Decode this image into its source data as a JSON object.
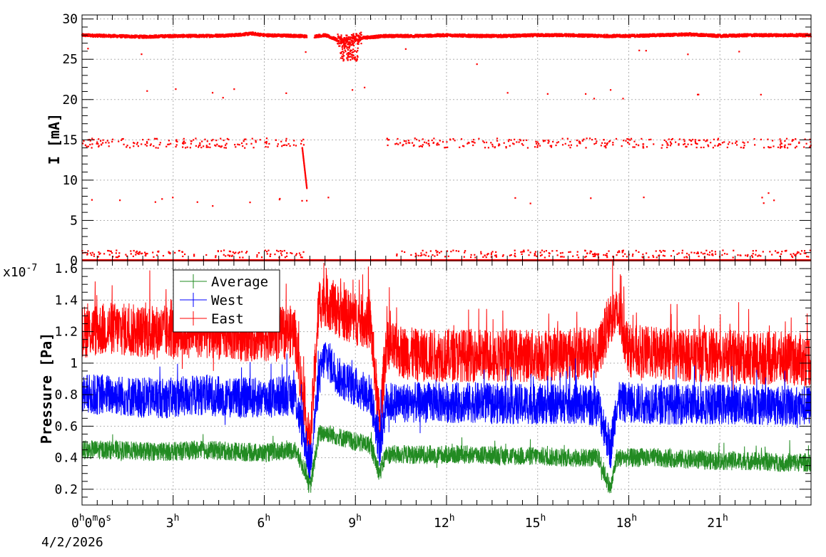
{
  "chart_data": [
    {
      "type": "scatter",
      "ylabel": "I [mA]",
      "ylim": [
        0,
        30.5
      ],
      "yticks": [
        "0",
        "5",
        "10",
        "15",
        "20",
        "25",
        "30"
      ],
      "xlim_hours": [
        0,
        24
      ],
      "grid": true,
      "color": "#ff0000",
      "series": [
        {
          "values_hours_mA": [
            [
              0.0,
              28.0
            ],
            [
              1.0,
              27.9
            ],
            [
              2.0,
              27.8
            ],
            [
              3.0,
              27.9
            ],
            [
              4.0,
              27.9
            ],
            [
              5.0,
              28.0
            ],
            [
              5.6,
              28.2
            ],
            [
              6.0,
              28.0
            ],
            [
              7.2,
              27.9
            ],
            [
              7.5,
              27.8
            ],
            [
              8.0,
              28.0
            ],
            [
              8.7,
              27.0
            ],
            [
              9.0,
              27.6
            ],
            [
              10.0,
              27.9
            ],
            [
              11.0,
              27.9
            ],
            [
              12.0,
              28.0
            ],
            [
              13.0,
              27.9
            ],
            [
              14.0,
              27.9
            ],
            [
              15.0,
              28.0
            ],
            [
              16.0,
              28.0
            ],
            [
              17.0,
              27.9
            ],
            [
              18.0,
              27.9
            ],
            [
              19.0,
              28.0
            ],
            [
              20.0,
              28.1
            ],
            [
              21.0,
              27.9
            ],
            [
              22.0,
              28.0
            ],
            [
              23.0,
              28.0
            ],
            [
              24.0,
              28.0
            ],
            [
              7.25,
              14.0
            ],
            [
              7.4,
              9.0
            ],
            [
              0.2,
              15.0
            ],
            [
              6.8,
              14.5
            ],
            [
              8.9,
              21.2
            ],
            [
              9.3,
              21.5
            ],
            [
              17.4,
              21.2
            ],
            [
              4.3,
              6.8
            ],
            [
              6.5,
              7.6
            ],
            [
              13.0,
              24.4
            ],
            [
              22.6,
              8.4
            ],
            [
              0.1,
              1.0
            ]
          ]
        }
      ]
    },
    {
      "type": "line",
      "xlabel": "",
      "ylabel": "Pressure [Pa]",
      "ylim": [
        0.1,
        1.65
      ],
      "exponent_label": "x10",
      "exponent": "-7",
      "yticks": [
        "0.2",
        "0.4",
        "0.6",
        "0.8",
        "1",
        "1.2",
        "1.4",
        "1.6"
      ],
      "grid": true,
      "legend": "top-left",
      "series": [
        {
          "name": "Average",
          "color": "#228b22",
          "values_hours": [
            [
              0.0,
              0.45
            ],
            [
              1.0,
              0.45
            ],
            [
              2.0,
              0.44
            ],
            [
              3.0,
              0.44
            ],
            [
              4.0,
              0.45
            ],
            [
              5.0,
              0.44
            ],
            [
              6.0,
              0.43
            ],
            [
              7.0,
              0.45
            ],
            [
              7.4,
              0.3
            ],
            [
              7.5,
              0.2
            ],
            [
              7.8,
              0.55
            ],
            [
              8.0,
              0.56
            ],
            [
              8.5,
              0.53
            ],
            [
              9.0,
              0.5
            ],
            [
              9.5,
              0.48
            ],
            [
              9.8,
              0.3
            ],
            [
              10.0,
              0.42
            ],
            [
              11.0,
              0.42
            ],
            [
              12.0,
              0.42
            ],
            [
              13.0,
              0.42
            ],
            [
              14.0,
              0.41
            ],
            [
              15.0,
              0.41
            ],
            [
              16.0,
              0.4
            ],
            [
              17.0,
              0.4
            ],
            [
              17.4,
              0.2
            ],
            [
              17.6,
              0.4
            ],
            [
              18.0,
              0.4
            ],
            [
              19.0,
              0.4
            ],
            [
              20.0,
              0.39
            ],
            [
              21.0,
              0.38
            ],
            [
              22.0,
              0.38
            ],
            [
              23.0,
              0.37
            ],
            [
              24.0,
              0.37
            ]
          ]
        },
        {
          "name": "West",
          "color": "#0000ff",
          "values_hours": [
            [
              0.0,
              0.8
            ],
            [
              1.0,
              0.8
            ],
            [
              2.0,
              0.78
            ],
            [
              3.0,
              0.78
            ],
            [
              4.0,
              0.8
            ],
            [
              5.0,
              0.78
            ],
            [
              6.0,
              0.78
            ],
            [
              7.0,
              0.8
            ],
            [
              7.4,
              0.45
            ],
            [
              7.5,
              0.35
            ],
            [
              7.8,
              0.9
            ],
            [
              8.0,
              1.05
            ],
            [
              8.5,
              0.9
            ],
            [
              9.0,
              0.85
            ],
            [
              9.5,
              0.8
            ],
            [
              9.8,
              0.45
            ],
            [
              10.0,
              0.75
            ],
            [
              11.0,
              0.75
            ],
            [
              12.0,
              0.75
            ],
            [
              13.0,
              0.75
            ],
            [
              14.0,
              0.74
            ],
            [
              15.0,
              0.74
            ],
            [
              16.0,
              0.74
            ],
            [
              17.0,
              0.73
            ],
            [
              17.4,
              0.45
            ],
            [
              17.6,
              0.75
            ],
            [
              18.0,
              0.75
            ],
            [
              19.0,
              0.74
            ],
            [
              20.0,
              0.74
            ],
            [
              21.0,
              0.74
            ],
            [
              22.0,
              0.74
            ],
            [
              23.0,
              0.73
            ],
            [
              24.0,
              0.73
            ]
          ]
        },
        {
          "name": "East",
          "color": "#ff0000",
          "values_hours": [
            [
              0.0,
              1.2
            ],
            [
              1.0,
              1.22
            ],
            [
              2.0,
              1.2
            ],
            [
              3.0,
              1.2
            ],
            [
              4.0,
              1.2
            ],
            [
              5.0,
              1.18
            ],
            [
              6.0,
              1.18
            ],
            [
              7.0,
              1.2
            ],
            [
              7.4,
              0.6
            ],
            [
              7.5,
              0.45
            ],
            [
              7.8,
              1.38
            ],
            [
              8.0,
              1.4
            ],
            [
              8.5,
              1.32
            ],
            [
              9.0,
              1.28
            ],
            [
              9.5,
              1.25
            ],
            [
              9.8,
              0.6
            ],
            [
              10.0,
              1.1
            ],
            [
              11.0,
              1.05
            ],
            [
              12.0,
              1.05
            ],
            [
              13.0,
              1.05
            ],
            [
              14.0,
              1.05
            ],
            [
              15.0,
              1.05
            ],
            [
              16.0,
              1.06
            ],
            [
              17.0,
              1.06
            ],
            [
              17.4,
              1.3
            ],
            [
              17.7,
              1.3
            ],
            [
              18.0,
              1.08
            ],
            [
              19.0,
              1.06
            ],
            [
              20.0,
              1.05
            ],
            [
              21.0,
              1.05
            ],
            [
              22.0,
              1.03
            ],
            [
              23.0,
              1.03
            ],
            [
              24.0,
              1.02
            ]
          ]
        }
      ]
    }
  ],
  "x_axis": {
    "first_label": "0",
    "first_label_sup_h": "h",
    "first_label_mid_0": "0",
    "first_label_sup_m": "m",
    "first_label_mid_1": "0",
    "first_label_sup_s": "s",
    "date": "4/2/2026",
    "tick_labels": [
      {
        "hours": 3,
        "num": "3",
        "sup": "h"
      },
      {
        "hours": 6,
        "num": "6",
        "sup": "h"
      },
      {
        "hours": 9,
        "num": "9",
        "sup": "h"
      },
      {
        "hours": 12,
        "num": "12",
        "sup": "h"
      },
      {
        "hours": 15,
        "num": "15",
        "sup": "h"
      },
      {
        "hours": 18,
        "num": "18",
        "sup": "h"
      },
      {
        "hours": 21,
        "num": "21",
        "sup": "h"
      }
    ]
  }
}
